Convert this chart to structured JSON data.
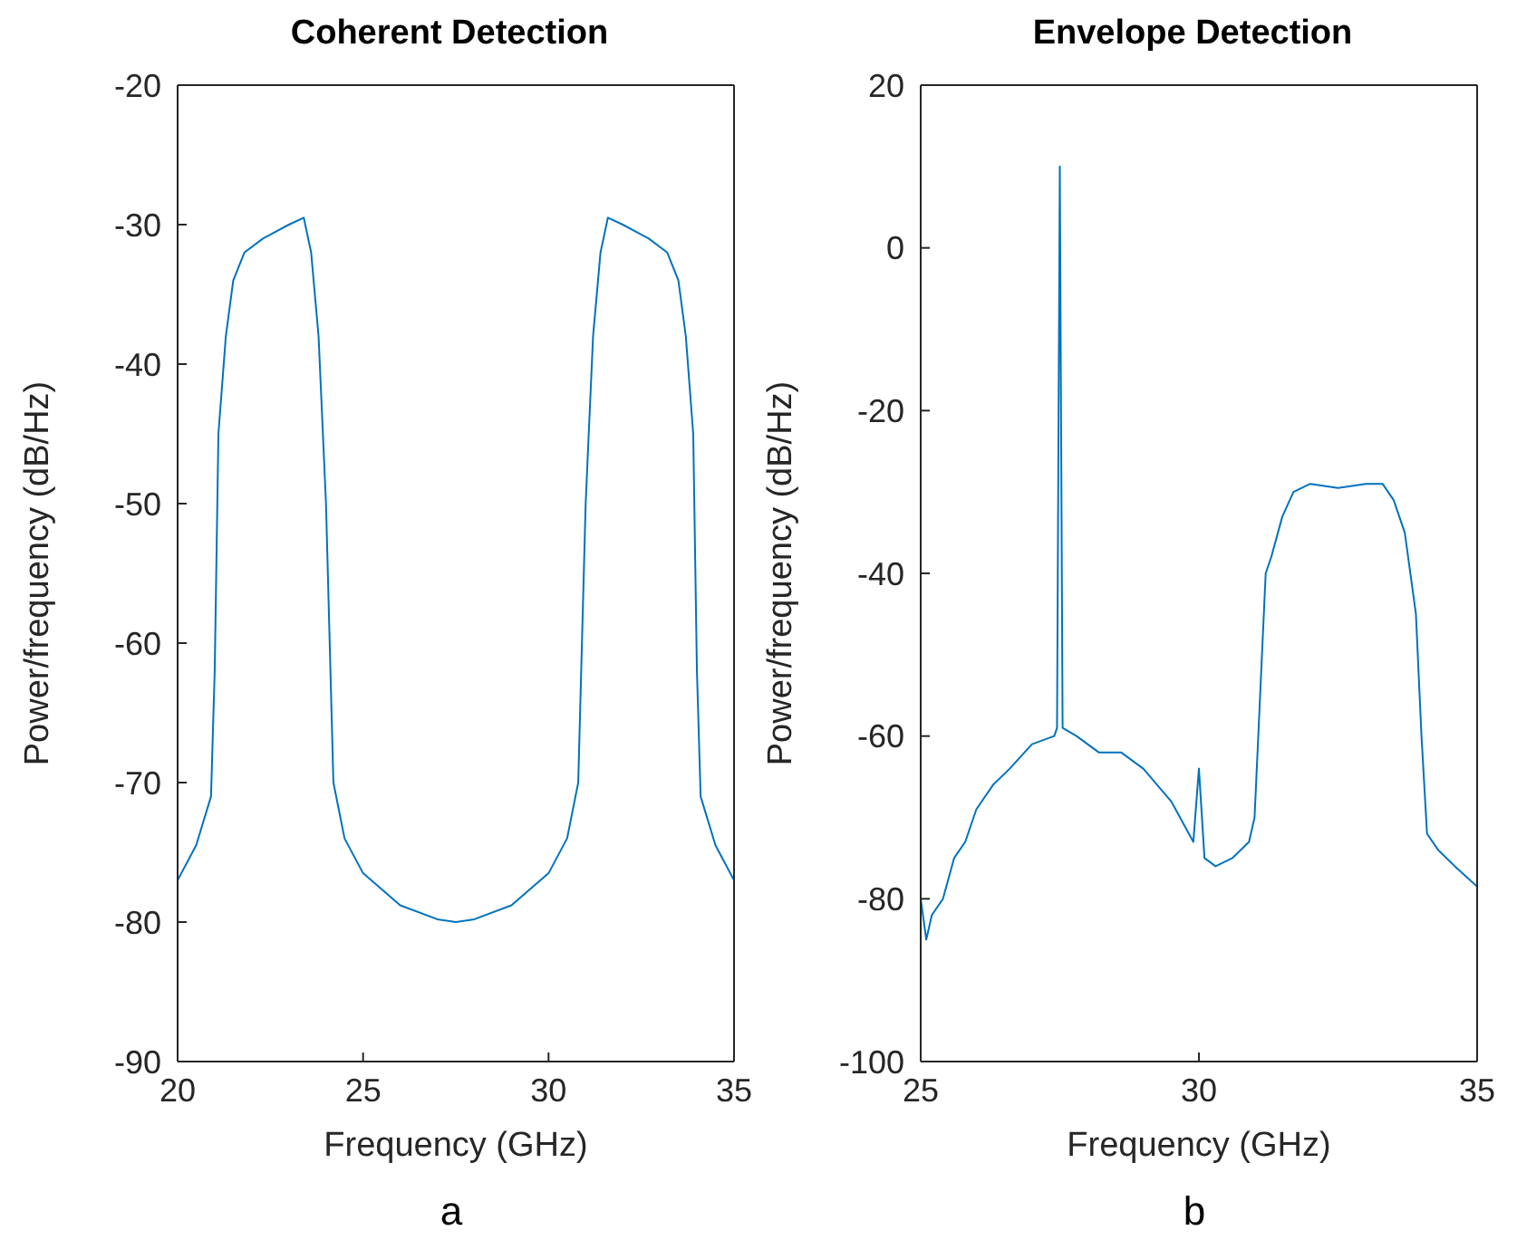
{
  "chart_data": [
    {
      "type": "line",
      "title": "Coherent Detection",
      "xlabel": "Frequency (GHz)",
      "ylabel": "Power/frequency (dB/Hz)",
      "annotations": [
        "a"
      ],
      "x": [
        20,
        20.5,
        20.9,
        21.0,
        21.1,
        21.3,
        21.5,
        21.8,
        22.3,
        23,
        23.4,
        23.6,
        23.8,
        24.0,
        24.2,
        24.5,
        25,
        26,
        27,
        27.5,
        28,
        29,
        30,
        30.5,
        30.8,
        31.0,
        31.2,
        31.4,
        31.6,
        32,
        32.7,
        33.2,
        33.5,
        33.7,
        33.9,
        34.0,
        34.1,
        34.5,
        35
      ],
      "series": [
        {
          "color": "#0072bd",
          "values": [
            -77,
            -74.5,
            -71,
            -62,
            -45,
            -38,
            -34,
            -32,
            -31,
            -30,
            -29.5,
            -32,
            -38,
            -50,
            -70,
            -74,
            -76.5,
            -78.8,
            -79.8,
            -80,
            -79.8,
            -78.8,
            -76.5,
            -74,
            -70,
            -50,
            -38,
            -32,
            -29.5,
            -30,
            -31,
            -32,
            -34,
            -38,
            -45,
            -62,
            -71,
            -74.5,
            -77
          ]
        }
      ],
      "xlim": [
        20,
        35
      ],
      "xticks": [
        20,
        25,
        30,
        35
      ],
      "ylim": [
        -90,
        -20
      ],
      "yticks": [
        -90,
        -80,
        -70,
        -60,
        -50,
        -40,
        -30,
        -20
      ],
      "grid": false
    },
    {
      "type": "line",
      "title": "Envelope Detection",
      "xlabel": "Frequency (GHz)",
      "ylabel": "Power/frequency (dB/Hz)",
      "annotations": [
        "b"
      ],
      "x": [
        25,
        25.1,
        25.2,
        25.4,
        25.6,
        25.8,
        26,
        26.3,
        26.6,
        27,
        27.4,
        27.45,
        27.5,
        27.55,
        27.8,
        28.2,
        28.6,
        29,
        29.5,
        29.9,
        30.0,
        30.1,
        30.3,
        30.6,
        30.9,
        31.0,
        31.1,
        31.2,
        31.3,
        31.5,
        31.7,
        32,
        32.5,
        33,
        33.3,
        33.5,
        33.7,
        33.9,
        34.0,
        34.1,
        34.3,
        34.6,
        35
      ],
      "series": [
        {
          "color": "#0072bd",
          "values": [
            -80,
            -85,
            -82,
            -80,
            -75,
            -73,
            -69,
            -66,
            -64,
            -61,
            -60,
            -59,
            10,
            -59,
            -60,
            -62,
            -62,
            -64,
            -68,
            -73,
            -64,
            -75,
            -76,
            -75,
            -73,
            -70,
            -55,
            -40,
            -38,
            -33,
            -30,
            -29,
            -29.5,
            -29,
            -29,
            -31,
            -35,
            -45,
            -60,
            -72,
            -74,
            -76,
            -78.5
          ]
        }
      ],
      "xlim": [
        25,
        35
      ],
      "xticks": [
        25,
        30,
        35
      ],
      "ylim": [
        -100,
        20
      ],
      "yticks": [
        -100,
        -80,
        -60,
        -40,
        -20,
        0,
        20
      ],
      "grid": false
    }
  ]
}
